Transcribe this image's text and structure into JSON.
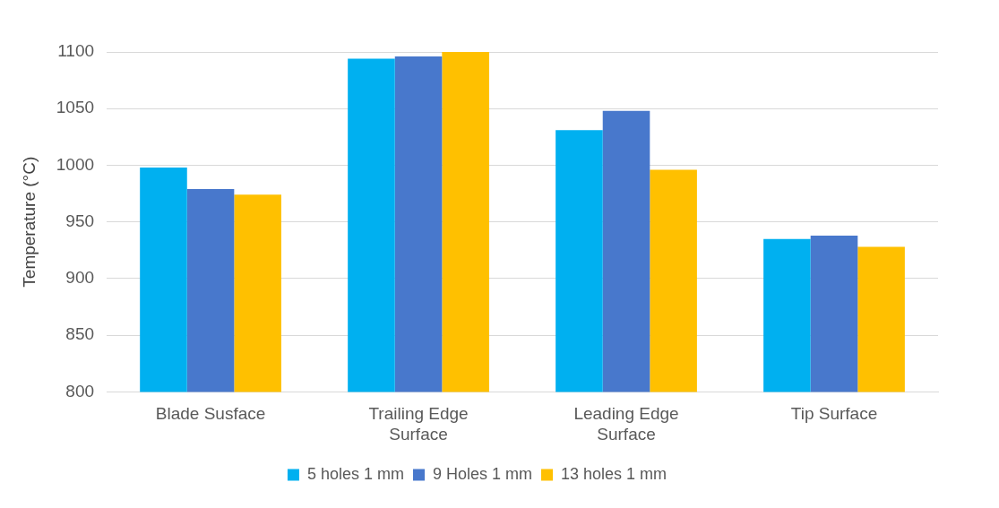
{
  "chart_data": {
    "type": "bar",
    "ylabel": "Temperature (°C)",
    "categories": [
      "Blade Susface",
      "Trailing Edge Surface",
      "Leading Edge Surface",
      "Tip Surface"
    ],
    "series": [
      {
        "name": "5 holes 1 mm",
        "color": "#00b0f0",
        "values": [
          998,
          1094,
          1031,
          935
        ]
      },
      {
        "name": "9 Holes 1 mm",
        "color": "#4878cc",
        "values": [
          979,
          1096,
          1048,
          938
        ]
      },
      {
        "name": "13 holes 1 mm",
        "color": "#ffc000",
        "values": [
          974,
          1100,
          996,
          928
        ]
      }
    ],
    "ylim": [
      800,
      1100
    ],
    "yticks": [
      800,
      850,
      900,
      950,
      1000,
      1050,
      1100
    ],
    "grid": "y",
    "legend": "bottom"
  }
}
